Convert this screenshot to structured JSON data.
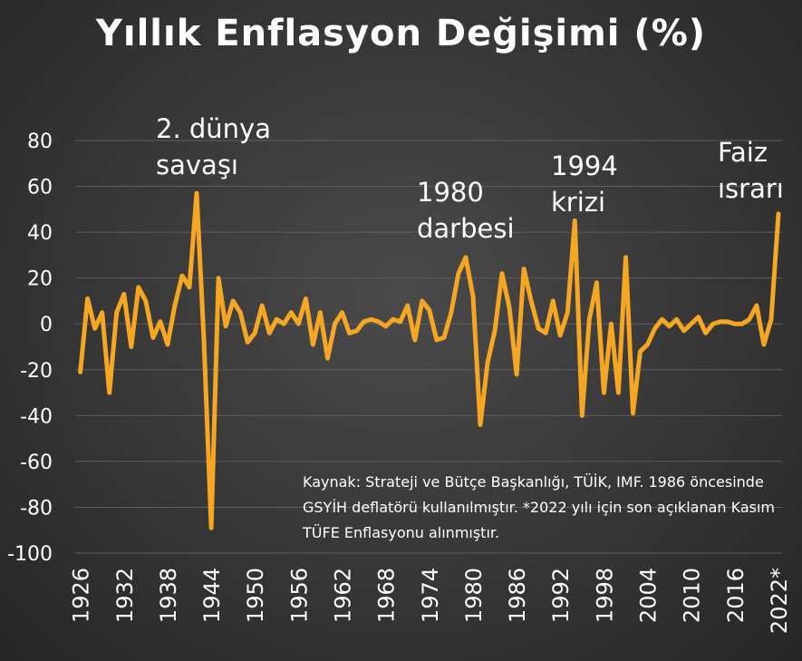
{
  "chart_data": {
    "type": "line",
    "title": "Yıllık Enflasyon Değişimi (%)",
    "xlabel": "",
    "ylabel": "",
    "ylim": [
      -100,
      80
    ],
    "yticks": [
      80,
      60,
      40,
      20,
      0,
      -20,
      -40,
      -60,
      -80,
      -100
    ],
    "x_tick_labels": [
      "1926",
      "1932",
      "1938",
      "1944",
      "1950",
      "1956",
      "1962",
      "1968",
      "1974",
      "1980",
      "1986",
      "1992",
      "1998",
      "2004",
      "2010",
      "2016",
      "2022*"
    ],
    "grid": true,
    "line_color": "#f5a623",
    "series": [
      {
        "x": [
          1926,
          1927,
          1928,
          1929,
          1930,
          1931,
          1932,
          1933,
          1934,
          1935,
          1936,
          1937,
          1938,
          1939,
          1940,
          1941,
          1942,
          1943,
          1944,
          1945,
          1946,
          1947,
          1948,
          1949,
          1950,
          1951,
          1952,
          1953,
          1954,
          1955,
          1956,
          1957,
          1958,
          1959,
          1960,
          1961,
          1962,
          1963,
          1964,
          1965,
          1966,
          1967,
          1968,
          1969,
          1970,
          1971,
          1972,
          1973,
          1974,
          1975,
          1976,
          1977,
          1978,
          1979,
          1980,
          1981,
          1982,
          1983,
          1984,
          1985,
          1986,
          1987,
          1988,
          1989,
          1990,
          1991,
          1992,
          1993,
          1994,
          1995,
          1996,
          1997,
          1998,
          1999,
          2000,
          2001,
          2002,
          2003,
          2004,
          2005,
          2006,
          2007,
          2008,
          2009,
          2010,
          2011,
          2012,
          2013,
          2014,
          2015,
          2016,
          2017,
          2018,
          2019,
          2020,
          2021,
          2022
        ],
        "values": [
          -21,
          11,
          -2,
          5,
          -30,
          5,
          13,
          -10,
          16,
          10,
          -6,
          1,
          -9,
          8,
          21,
          16,
          57,
          -7,
          -89,
          20,
          -1,
          10,
          5,
          -8,
          -4,
          8,
          -4,
          2,
          0,
          5,
          0,
          11,
          -9,
          5,
          -15,
          0,
          5,
          -4,
          -3,
          1,
          2,
          1,
          -1,
          2,
          1,
          8,
          -7,
          10,
          6,
          -7,
          -6,
          5,
          22,
          29,
          12,
          -44,
          -17,
          -3,
          22,
          7,
          -22,
          24,
          10,
          -2,
          -4,
          10,
          -5,
          5,
          45,
          -40,
          2,
          18,
          -30,
          0,
          -30,
          29,
          -39,
          -12,
          -9,
          -2,
          2,
          -1,
          2,
          -3,
          0,
          3,
          -4,
          0,
          1,
          1,
          0,
          0,
          2,
          8,
          -9,
          2,
          48
        ]
      }
    ],
    "annotations": [
      {
        "lines": [
          "2. dünya",
          "savaşı"
        ],
        "year": 1942
      },
      {
        "lines": [
          "1980",
          "darbesi"
        ],
        "year": 1980
      },
      {
        "lines": [
          "1994",
          "krizi"
        ],
        "year": 1994
      },
      {
        "lines": [
          "Faiz",
          "ısrarı"
        ],
        "year": 2022
      }
    ]
  },
  "source_note": "Kaynak: Strateji ve Bütçe Başkanlığı, TÜİK, IMF. 1986 öncesinde GSYİH deflatörü kullanılmıştır. *2022 yılı için son açıklanan Kasım TÜFE Enflasyonu alınmıştır."
}
